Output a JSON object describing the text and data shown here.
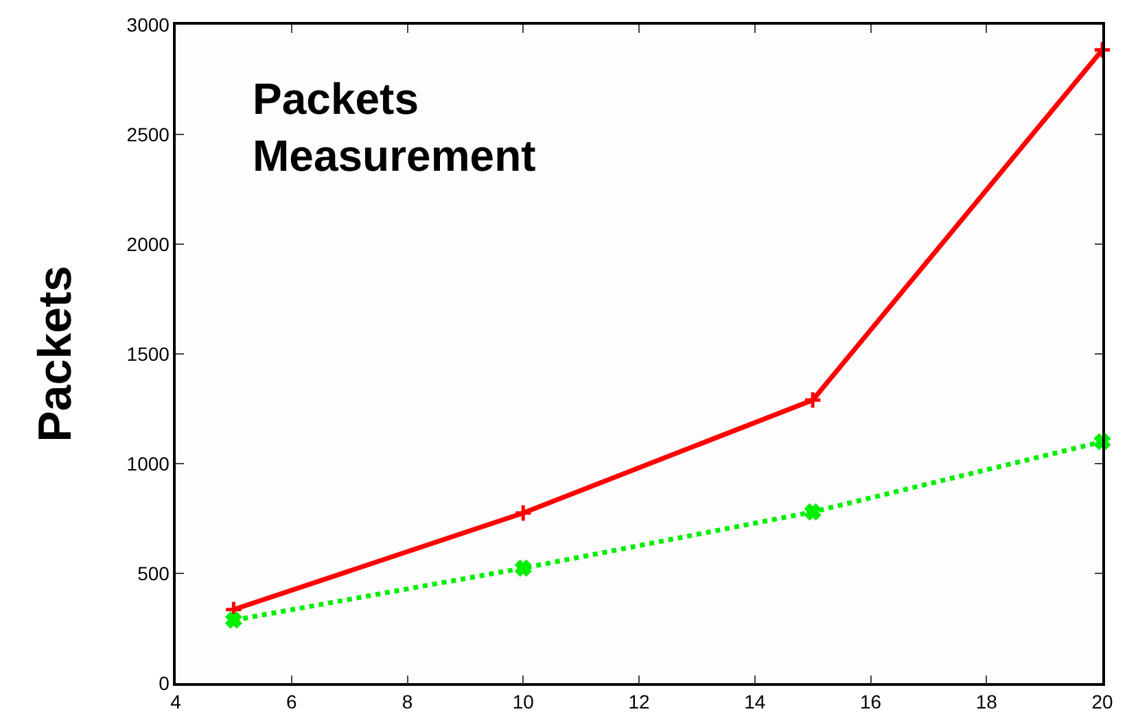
{
  "chart_data": {
    "type": "line",
    "title": "Packets\nMeasurement",
    "ylabel": "Packets",
    "x": [
      5,
      10,
      15,
      20
    ],
    "series": [
      {
        "color": "#ff0000",
        "values": [
          335,
          775,
          1290,
          2885
        ],
        "line_style": "solid",
        "marker": "cross"
      },
      {
        "color": "#00ee00",
        "values": [
          287,
          524,
          780,
          1100
        ],
        "line_style": "dotted",
        "marker": "x"
      }
    ],
    "xlim": [
      4,
      20
    ],
    "xticks": [
      4,
      6,
      8,
      10,
      12,
      14,
      16,
      18,
      20
    ],
    "ylim": [
      0,
      3000
    ],
    "yticks": [
      0,
      500,
      1000,
      1500,
      2000,
      2500,
      3000
    ]
  }
}
